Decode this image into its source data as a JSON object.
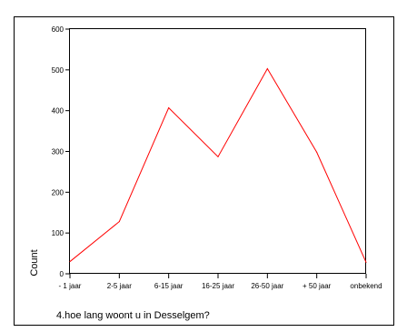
{
  "chart_data": {
    "type": "line",
    "categories": [
      "- 1 jaar",
      "2-5 jaar",
      "6-15 jaar",
      "16-25 jaar",
      "26-50 jaar",
      "+ 50 jaar",
      "onbekend"
    ],
    "series": [
      {
        "values": [
          30,
          128,
          407,
          287,
          503,
          298,
          28
        ],
        "color": "#ff0000"
      }
    ],
    "ylabel": "Count",
    "xlabel": "4.hoe lang woont u in Desselgem?",
    "ylim": [
      0,
      600
    ],
    "yticks": [
      0,
      100,
      200,
      300,
      400,
      500,
      600
    ],
    "grid": false,
    "legend": "none"
  }
}
